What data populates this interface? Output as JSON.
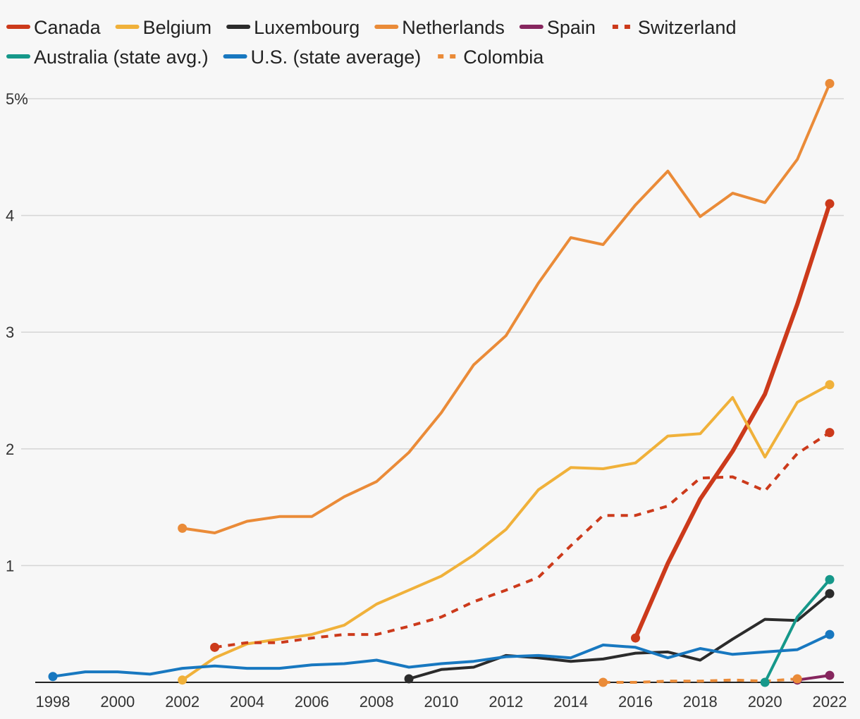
{
  "chart_data": {
    "type": "line",
    "title": "",
    "xlabel": "",
    "ylabel": "",
    "x_range": [
      1998,
      2022
    ],
    "ylim": [
      0,
      5.2
    ],
    "y_ticks": [
      {
        "value": 1,
        "label": "1"
      },
      {
        "value": 2,
        "label": "2"
      },
      {
        "value": 3,
        "label": "3"
      },
      {
        "value": 4,
        "label": "4"
      },
      {
        "value": 5,
        "label": "5%"
      }
    ],
    "x_ticks": [
      {
        "value": 1998,
        "label": "1998"
      },
      {
        "value": 2000,
        "label": "2000"
      },
      {
        "value": 2002,
        "label": "2002"
      },
      {
        "value": 2004,
        "label": "2004"
      },
      {
        "value": 2006,
        "label": "2006"
      },
      {
        "value": 2008,
        "label": "2008"
      },
      {
        "value": 2010,
        "label": "2010"
      },
      {
        "value": 2012,
        "label": "2012"
      },
      {
        "value": 2014,
        "label": "2014"
      },
      {
        "value": 2016,
        "label": "2016"
      },
      {
        "value": 2018,
        "label": "2018"
      },
      {
        "value": 2020,
        "label": "2020"
      },
      {
        "value": 2022,
        "label": "2022"
      }
    ],
    "grid": true,
    "legend_position": "top",
    "series": [
      {
        "name": "Canada",
        "color": "#cc3a1b",
        "style": "solid",
        "weight": "thick",
        "x": [
          2016,
          2017,
          2018,
          2019,
          2020,
          2021,
          2022
        ],
        "values": [
          0.38,
          1.02,
          1.57,
          1.98,
          2.47,
          3.24,
          4.1
        ]
      },
      {
        "name": "Belgium",
        "color": "#f0b13a",
        "style": "solid",
        "weight": "normal",
        "x": [
          2002,
          2003,
          2004,
          2005,
          2006,
          2007,
          2008,
          2009,
          2010,
          2011,
          2012,
          2013,
          2014,
          2015,
          2016,
          2017,
          2018,
          2019,
          2020,
          2021,
          2022
        ],
        "values": [
          0.02,
          0.21,
          0.33,
          0.37,
          0.41,
          0.49,
          0.67,
          0.79,
          0.91,
          1.09,
          1.31,
          1.65,
          1.84,
          1.83,
          1.88,
          2.11,
          2.13,
          2.44,
          1.93,
          2.4,
          2.55
        ]
      },
      {
        "name": "Luxembourg",
        "color": "#2b2b2b",
        "style": "solid",
        "weight": "normal",
        "x": [
          2009,
          2010,
          2011,
          2012,
          2013,
          2014,
          2015,
          2016,
          2017,
          2018,
          2019,
          2020,
          2021,
          2022
        ],
        "values": [
          0.03,
          0.11,
          0.13,
          0.23,
          0.21,
          0.18,
          0.2,
          0.25,
          0.26,
          0.19,
          0.37,
          0.54,
          0.53,
          0.76
        ]
      },
      {
        "name": "Netherlands",
        "color": "#ea8b38",
        "style": "solid",
        "weight": "normal",
        "x": [
          2002,
          2003,
          2004,
          2005,
          2006,
          2007,
          2008,
          2009,
          2010,
          2011,
          2012,
          2013,
          2014,
          2015,
          2016,
          2017,
          2018,
          2019,
          2020,
          2021,
          2022
        ],
        "values": [
          1.32,
          1.28,
          1.38,
          1.42,
          1.42,
          1.59,
          1.72,
          1.97,
          2.31,
          2.72,
          2.97,
          3.42,
          3.81,
          3.75,
          4.09,
          4.38,
          3.99,
          4.19,
          4.11,
          4.48,
          5.13
        ]
      },
      {
        "name": "Spain",
        "color": "#86265e",
        "style": "solid",
        "weight": "normal",
        "x": [
          2021,
          2022
        ],
        "values": [
          0.02,
          0.06
        ]
      },
      {
        "name": "Switzerland",
        "color": "#cc3a1b",
        "style": "dashed",
        "weight": "normal",
        "x": [
          2003,
          2004,
          2005,
          2006,
          2007,
          2008,
          2009,
          2010,
          2011,
          2012,
          2013,
          2014,
          2015,
          2016,
          2017,
          2018,
          2019,
          2020,
          2021,
          2022
        ],
        "values": [
          0.3,
          0.34,
          0.34,
          0.38,
          0.41,
          0.41,
          0.48,
          0.56,
          0.69,
          0.79,
          0.9,
          1.17,
          1.43,
          1.43,
          1.51,
          1.75,
          1.76,
          1.64,
          1.96,
          2.14
        ]
      },
      {
        "name": "Australia (state avg.)",
        "color": "#16988a",
        "style": "solid",
        "weight": "normal",
        "x": [
          2020,
          2021,
          2022
        ],
        "values": [
          0.0,
          0.56,
          0.88
        ]
      },
      {
        "name": "U.S. (state average)",
        "color": "#1878c0",
        "style": "solid",
        "weight": "normal",
        "x": [
          1998,
          1999,
          2000,
          2001,
          2002,
          2003,
          2004,
          2005,
          2006,
          2007,
          2008,
          2009,
          2010,
          2011,
          2012,
          2013,
          2014,
          2015,
          2016,
          2017,
          2018,
          2019,
          2020,
          2021,
          2022
        ],
        "values": [
          0.05,
          0.09,
          0.09,
          0.07,
          0.12,
          0.14,
          0.12,
          0.12,
          0.15,
          0.16,
          0.19,
          0.13,
          0.16,
          0.18,
          0.22,
          0.23,
          0.21,
          0.32,
          0.3,
          0.21,
          0.29,
          0.24,
          0.26,
          0.28,
          0.41
        ]
      },
      {
        "name": "Colombia",
        "color": "#ea8b38",
        "style": "dashed",
        "weight": "normal",
        "x": [
          2015,
          2016,
          2017,
          2018,
          2019,
          2020,
          2021
        ],
        "values": [
          0.0,
          0.0,
          0.01,
          0.01,
          0.02,
          0.01,
          0.03
        ]
      }
    ]
  }
}
